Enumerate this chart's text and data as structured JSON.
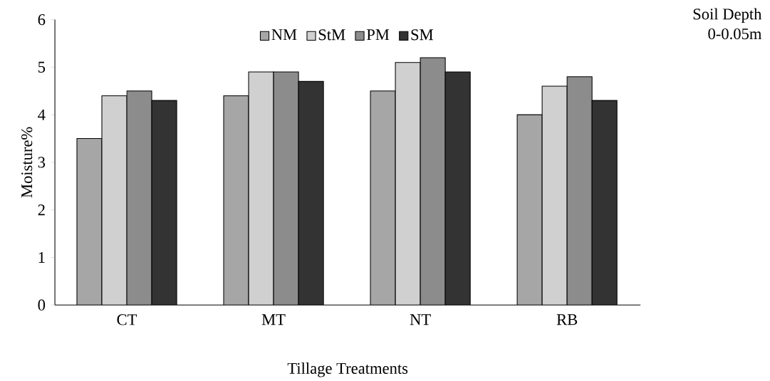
{
  "chart_data": {
    "type": "bar",
    "xlabel": "Tillage Treatments",
    "ylabel": "Moisture%",
    "annotations": [
      "Soil Depth",
      "0-0.05m"
    ],
    "categories": [
      "CT",
      "MT",
      "NT",
      "RB"
    ],
    "series": [
      {
        "name": "NM",
        "color": "#a6a6a6",
        "values": [
          3.5,
          4.4,
          4.5,
          4.0
        ]
      },
      {
        "name": "StM",
        "color": "#d0d0d0",
        "values": [
          4.4,
          4.9,
          5.1,
          4.6
        ]
      },
      {
        "name": "PM",
        "color": "#8c8c8c",
        "values": [
          4.5,
          4.9,
          5.2,
          4.8
        ]
      },
      {
        "name": "SM",
        "color": "#333333",
        "values": [
          4.3,
          4.7,
          4.9,
          4.3
        ]
      }
    ],
    "ylim": [
      0,
      6
    ],
    "yticks": [
      0,
      1,
      2,
      3,
      4,
      5,
      6
    ],
    "grid": false,
    "legend": "top"
  }
}
